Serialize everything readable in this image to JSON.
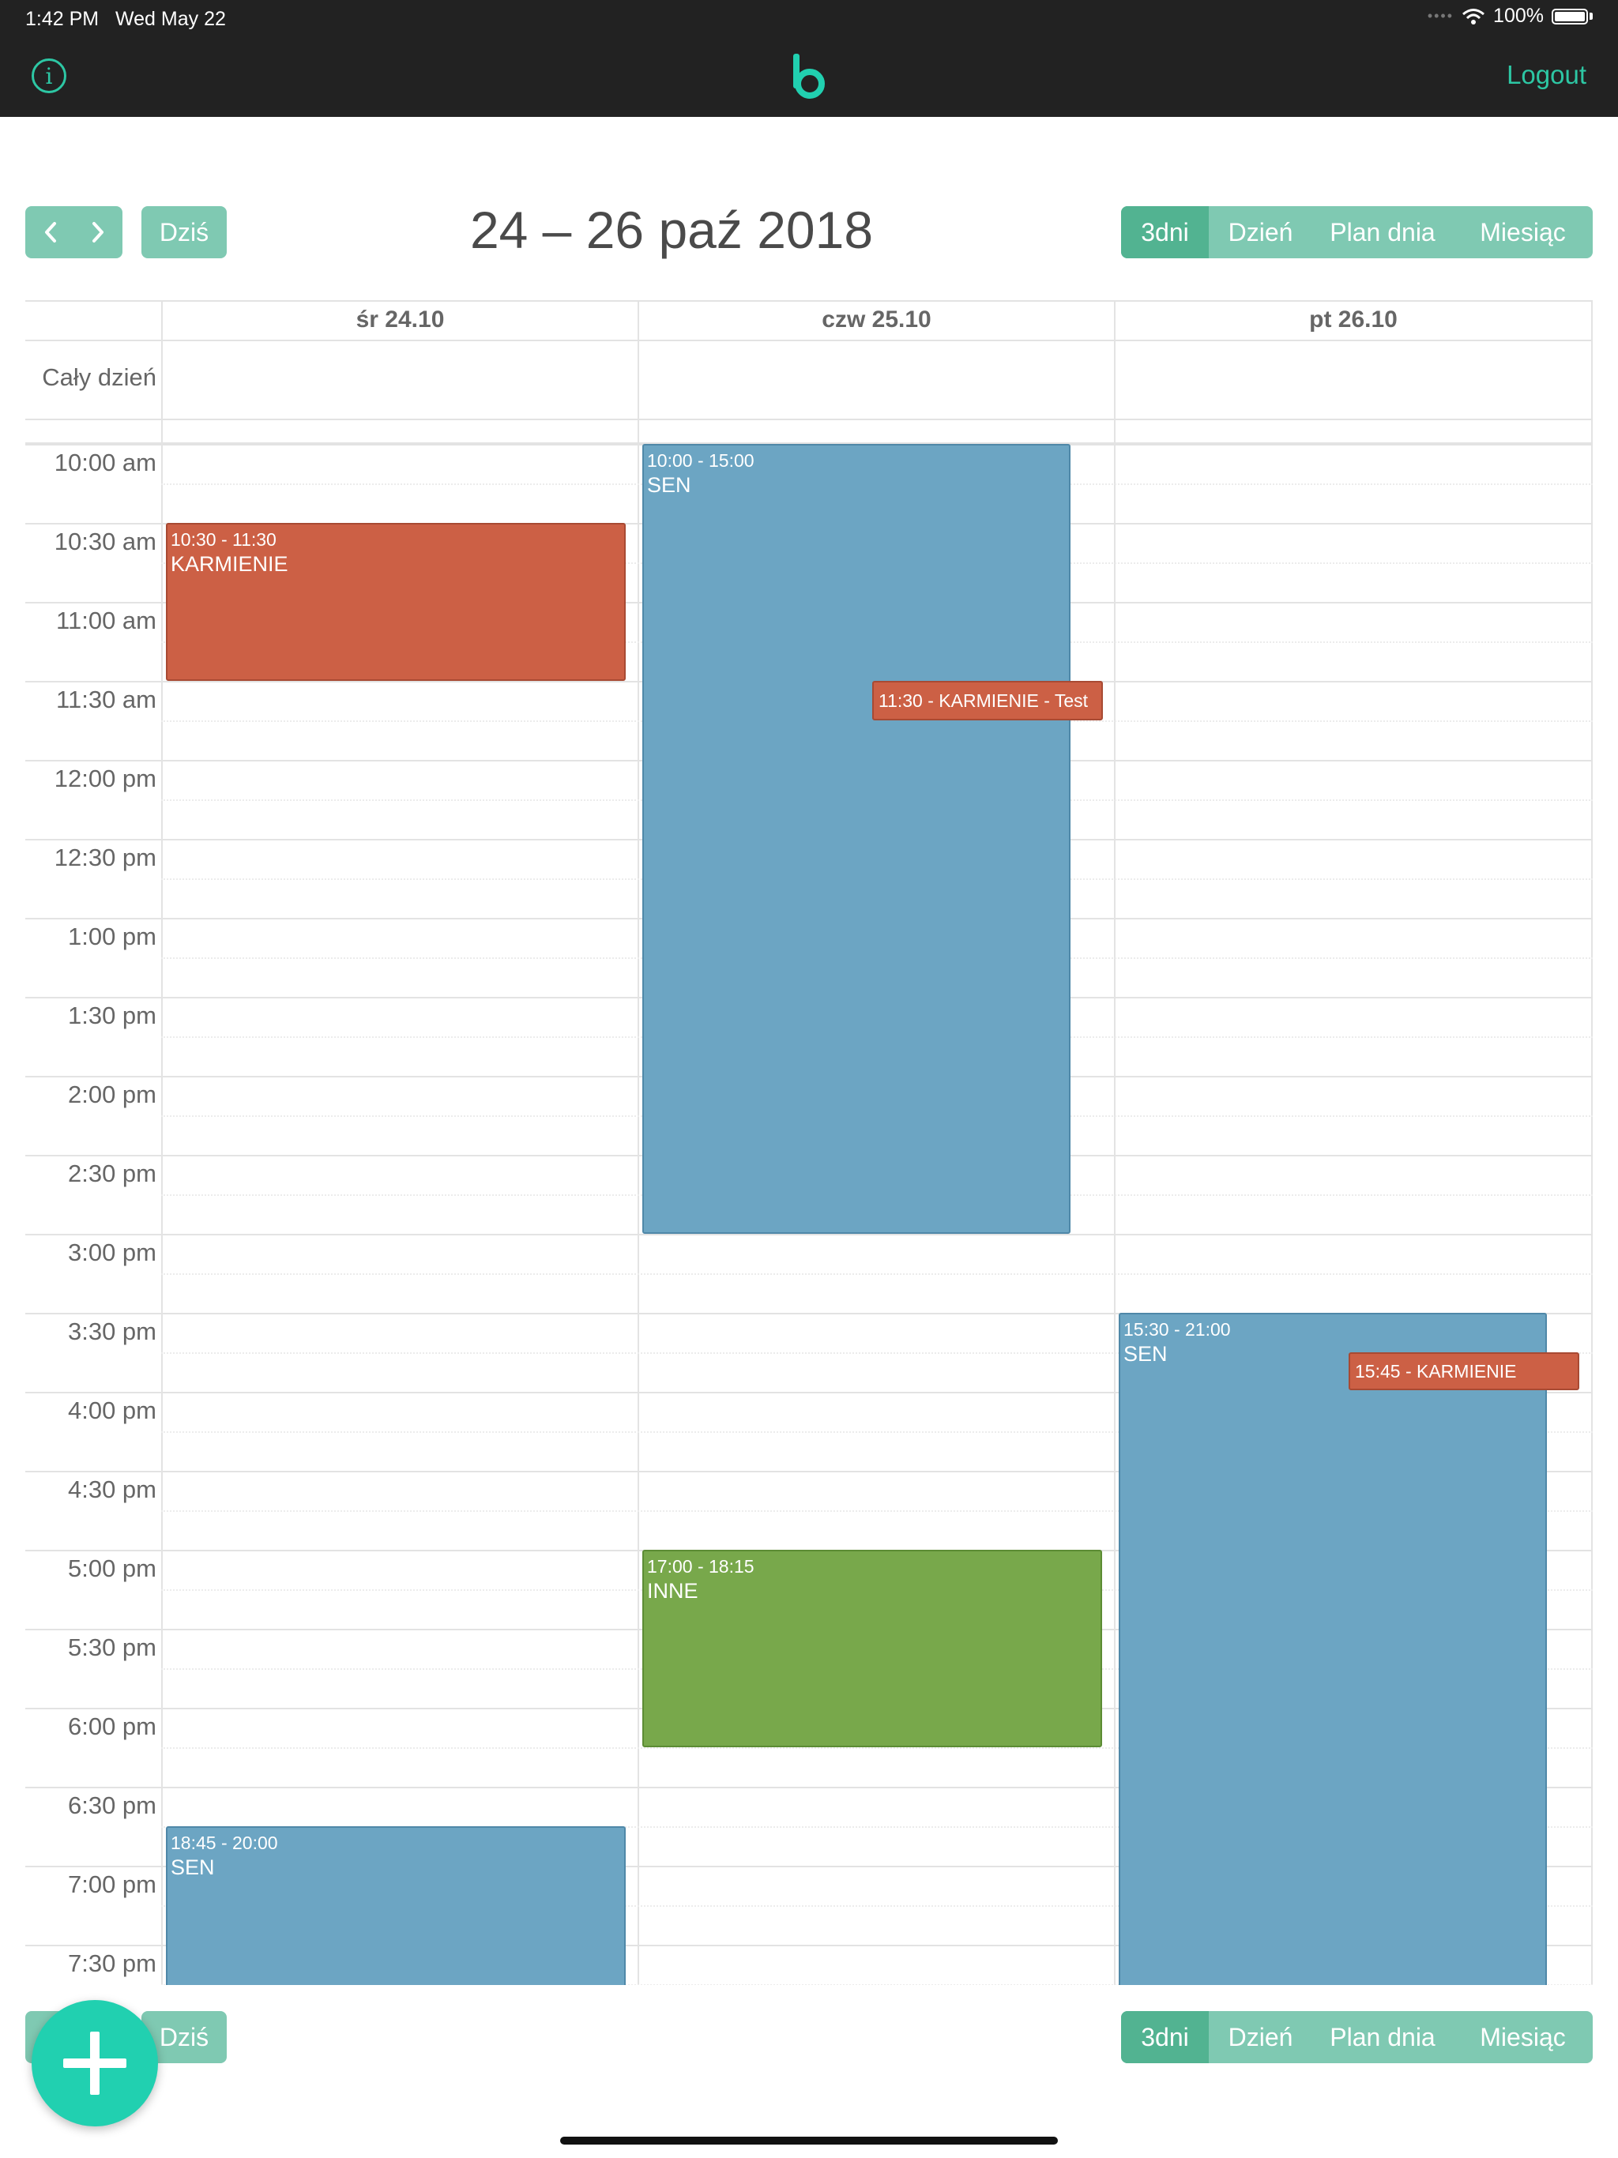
{
  "status": {
    "time": "1:42 PM",
    "date": "Wed May 22",
    "battery": "100%"
  },
  "nav": {
    "logout": "Logout",
    "info_icon": "info-icon",
    "logo_letter": "b",
    "accent": "#2dc7a4"
  },
  "toolbar": {
    "prev_icon": "chevron-left-icon",
    "next_icon": "chevron-right-icon",
    "today": "Dziś",
    "title": "24 – 26 paź 2018",
    "views": [
      "3dni",
      "Dzień",
      "Plan dnia",
      "Miesiąc"
    ],
    "active_view": "3dni"
  },
  "calendar": {
    "days": [
      "śr 24.10",
      "czw 25.10",
      "pt 26.10"
    ],
    "all_day_label": "Cały dzień",
    "times": [
      "10:00 am",
      "10:30 am",
      "11:00 am",
      "11:30 am",
      "12:00 pm",
      "12:30 pm",
      "1:00 pm",
      "1:30 pm",
      "2:00 pm",
      "2:30 pm",
      "3:00 pm",
      "3:30 pm",
      "4:00 pm",
      "4:30 pm",
      "5:00 pm",
      "5:30 pm",
      "6:00 pm",
      "6:30 pm",
      "7:00 pm",
      "7:30 pm"
    ],
    "events": [
      {
        "time": "10:30 - 11:30",
        "title": "KARMIENIE",
        "color": "#cc6045"
      },
      {
        "time": "18:45 - 20:00",
        "title": "SEN",
        "color": "#6ca5c3"
      },
      {
        "time": "10:00 - 15:00",
        "title": "SEN",
        "color": "#6ca5c3"
      },
      {
        "time": "11:30 - KARMIENIE - Test",
        "title": "",
        "color": "#cc6045"
      },
      {
        "time": "17:00 - 18:15",
        "title": "INNE",
        "color": "#78a84b"
      },
      {
        "time": "15:30 - 21:00",
        "title": "SEN",
        "color": "#6ca5c3"
      },
      {
        "time": "15:45 - KARMIENIE",
        "title": "",
        "color": "#cc6045"
      }
    ]
  },
  "bottom_toolbar": {
    "today": "Dziś",
    "views": [
      "3dni",
      "Dzień",
      "Plan dnia",
      "Miesiąc"
    ],
    "active_view": "3dni"
  },
  "fab": {
    "icon": "plus-icon"
  }
}
